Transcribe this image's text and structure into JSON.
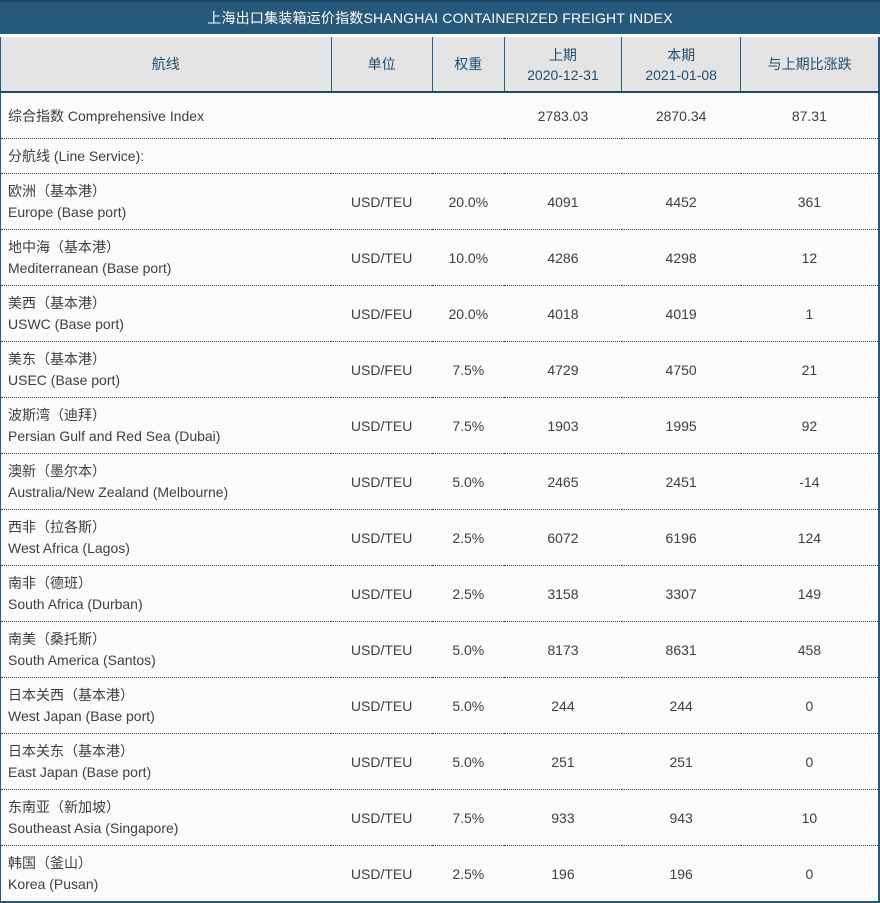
{
  "title": "上海出口集装箱运价指数SHANGHAI CONTAINERIZED FREIGHT INDEX",
  "colors": {
    "title_bar_bg": "#27597b",
    "header_bg": "#e4e4e4",
    "header_text": "#1e4e70",
    "border_blue": "#27597b",
    "row_separator_dotted": "#1f4e66",
    "body_text": "#3c4043"
  },
  "columns": [
    {
      "label": "航线"
    },
    {
      "label": "单位"
    },
    {
      "label": "权重"
    },
    {
      "label": "上期",
      "sublabel": "2020-12-31"
    },
    {
      "label": "本期",
      "sublabel": "2021-01-08"
    },
    {
      "label": "与上期比涨跌"
    }
  ],
  "comprehensive": {
    "label": "综合指数 Comprehensive Index",
    "unit": "",
    "weight": "",
    "prev": "2783.03",
    "curr": "2870.34",
    "change": "87.31"
  },
  "section_label": "分航线 (Line Service):",
  "routes": [
    {
      "name_zh": "欧洲（基本港）",
      "name_en": "Europe (Base port)",
      "unit": "USD/TEU",
      "weight": "20.0%",
      "prev": "4091",
      "curr": "4452",
      "change": "361"
    },
    {
      "name_zh": "地中海（基本港）",
      "name_en": "Mediterranean (Base port)",
      "unit": "USD/TEU",
      "weight": "10.0%",
      "prev": "4286",
      "curr": "4298",
      "change": "12"
    },
    {
      "name_zh": "美西（基本港）",
      "name_en": "USWC (Base port)",
      "unit": "USD/FEU",
      "weight": "20.0%",
      "prev": "4018",
      "curr": "4019",
      "change": "1"
    },
    {
      "name_zh": "美东（基本港）",
      "name_en": "USEC (Base port)",
      "unit": "USD/FEU",
      "weight": "7.5%",
      "prev": "4729",
      "curr": "4750",
      "change": "21"
    },
    {
      "name_zh": "波斯湾（迪拜）",
      "name_en": "Persian Gulf and Red Sea (Dubai)",
      "unit": "USD/TEU",
      "weight": "7.5%",
      "prev": "1903",
      "curr": "1995",
      "change": "92"
    },
    {
      "name_zh": "澳新（墨尔本）",
      "name_en": "Australia/New Zealand (Melbourne)",
      "unit": "USD/TEU",
      "weight": "5.0%",
      "prev": "2465",
      "curr": "2451",
      "change": "-14"
    },
    {
      "name_zh": "西非（拉各斯）",
      "name_en": "West Africa (Lagos)",
      "unit": "USD/TEU",
      "weight": "2.5%",
      "prev": "6072",
      "curr": "6196",
      "change": "124"
    },
    {
      "name_zh": "南非（德班）",
      "name_en": "South Africa (Durban)",
      "unit": "USD/TEU",
      "weight": "2.5%",
      "prev": "3158",
      "curr": "3307",
      "change": "149"
    },
    {
      "name_zh": "南美（桑托斯）",
      "name_en": "South America (Santos)",
      "unit": "USD/TEU",
      "weight": "5.0%",
      "prev": "8173",
      "curr": "8631",
      "change": "458"
    },
    {
      "name_zh": "日本关西（基本港）",
      "name_en": "West Japan (Base port)",
      "unit": "USD/TEU",
      "weight": "5.0%",
      "prev": "244",
      "curr": "244",
      "change": "0"
    },
    {
      "name_zh": "日本关东（基本港）",
      "name_en": "East Japan (Base port)",
      "unit": "USD/TEU",
      "weight": "5.0%",
      "prev": "251",
      "curr": "251",
      "change": "0"
    },
    {
      "name_zh": "东南亚（新加坡）",
      "name_en": "Southeast Asia (Singapore)",
      "unit": "USD/TEU",
      "weight": "7.5%",
      "prev": "933",
      "curr": "943",
      "change": "10"
    },
    {
      "name_zh": "韩国（釜山）",
      "name_en": "Korea (Pusan)",
      "unit": "USD/TEU",
      "weight": "2.5%",
      "prev": "196",
      "curr": "196",
      "change": "0"
    }
  ]
}
